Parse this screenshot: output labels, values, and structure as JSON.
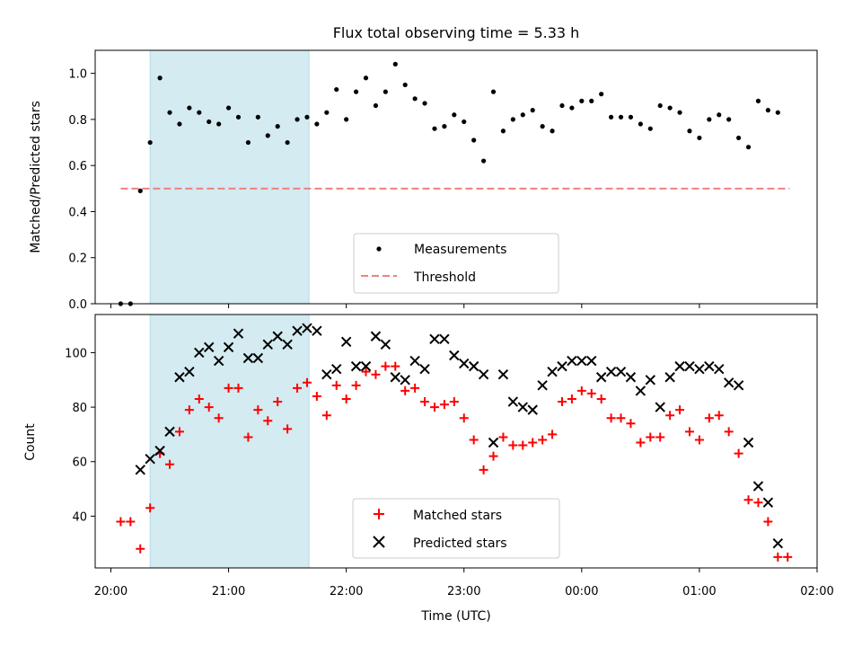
{
  "figure_title": "Flux total observing time = 5.33 h",
  "chart_data": [
    {
      "type": "scatter",
      "title": "Flux total observing time = 5.33 h",
      "xlabel": "",
      "ylabel": "Matched/Predicted stars",
      "ylim": [
        0,
        1.1
      ],
      "yticks": [
        "0.0",
        "0.2",
        "0.4",
        "0.6",
        "0.8",
        "1.0"
      ],
      "yticks_values": [
        0,
        0.2,
        0.4,
        0.6,
        0.8,
        1.0
      ],
      "shaded_window": {
        "start": "20:20",
        "end": "21:41",
        "color": "#d3ebf1"
      },
      "threshold": {
        "label": "Threshold",
        "value": 0.5,
        "x_start": "20:05",
        "x_end": "01:46",
        "color": "#f08080"
      },
      "legend": {
        "placement": "lower-center",
        "entries": [
          "Measurements",
          "Threshold"
        ]
      },
      "series": [
        {
          "name": "Measurements",
          "marker": "dot",
          "color": "#000000",
          "x": [
            "20:05",
            "20:10",
            "20:15",
            "20:20",
            "20:25",
            "20:30",
            "20:35",
            "20:40",
            "20:45",
            "20:50",
            "20:55",
            "21:00",
            "21:05",
            "21:10",
            "21:15",
            "21:20",
            "21:25",
            "21:30",
            "21:35",
            "21:40",
            "21:45",
            "21:50",
            "21:55",
            "22:00",
            "22:05",
            "22:10",
            "22:15",
            "22:20",
            "22:25",
            "22:30",
            "22:35",
            "22:40",
            "22:45",
            "22:50",
            "22:55",
            "23:00",
            "23:05",
            "23:10",
            "23:15",
            "23:20",
            "23:25",
            "23:30",
            "23:35",
            "23:40",
            "23:45",
            "23:50",
            "23:55",
            "00:00",
            "00:05",
            "00:10",
            "00:15",
            "00:20",
            "00:25",
            "00:30",
            "00:35",
            "00:40",
            "00:45",
            "00:50",
            "00:55",
            "01:00",
            "01:05",
            "01:10",
            "01:15",
            "01:20",
            "01:25",
            "01:30",
            "01:35",
            "01:40"
          ],
          "y": [
            0.0,
            0.0,
            0.49,
            0.7,
            0.98,
            0.83,
            0.78,
            0.85,
            0.83,
            0.79,
            0.78,
            0.85,
            0.81,
            0.7,
            0.81,
            0.73,
            0.77,
            0.7,
            0.8,
            0.81,
            0.78,
            0.83,
            0.93,
            0.8,
            0.92,
            0.98,
            0.86,
            0.92,
            1.04,
            0.95,
            0.89,
            0.87,
            0.76,
            0.77,
            0.82,
            0.79,
            0.71,
            0.62,
            0.92,
            0.75,
            0.8,
            0.82,
            0.84,
            0.77,
            0.75,
            0.86,
            0.85,
            0.88,
            0.88,
            0.91,
            0.81,
            0.81,
            0.81,
            0.78,
            0.76,
            0.86,
            0.85,
            0.83,
            0.75,
            0.72,
            0.8,
            0.82,
            0.8,
            0.72,
            0.68,
            0.88,
            0.84,
            0.83
          ]
        }
      ]
    },
    {
      "type": "scatter",
      "xlabel": "Time (UTC)",
      "ylabel": "Count",
      "ylim": [
        21,
        114
      ],
      "yticks": [
        "40",
        "60",
        "80",
        "100"
      ],
      "yticks_values": [
        40,
        60,
        80,
        100
      ],
      "xlim": [
        "19:52",
        "02:00"
      ],
      "xticks": [
        "20:00",
        "21:00",
        "22:00",
        "23:00",
        "00:00",
        "01:00",
        "02:00"
      ],
      "shaded_window": {
        "start": "20:20",
        "end": "21:41",
        "color": "#d3ebf1"
      },
      "legend": {
        "placement": "lower-center",
        "entries": [
          "Matched stars",
          "Predicted stars"
        ]
      },
      "series": [
        {
          "name": "Matched stars",
          "marker": "plus",
          "color": "#ff0000",
          "x": [
            "20:05",
            "20:10",
            "20:15",
            "20:20",
            "20:25",
            "20:30",
            "20:35",
            "20:40",
            "20:45",
            "20:50",
            "20:55",
            "21:00",
            "21:05",
            "21:10",
            "21:15",
            "21:20",
            "21:25",
            "21:30",
            "21:35",
            "21:40",
            "21:45",
            "21:50",
            "21:55",
            "22:00",
            "22:05",
            "22:10",
            "22:15",
            "22:20",
            "22:25",
            "22:30",
            "22:35",
            "22:40",
            "22:45",
            "22:50",
            "22:55",
            "23:00",
            "23:05",
            "23:10",
            "23:15",
            "23:20",
            "23:25",
            "23:30",
            "23:35",
            "23:40",
            "23:45",
            "23:50",
            "23:55",
            "00:00",
            "00:05",
            "00:10",
            "00:15",
            "00:20",
            "00:25",
            "00:30",
            "00:35",
            "00:40",
            "00:45",
            "00:50",
            "00:55",
            "01:00",
            "01:05",
            "01:10",
            "01:15",
            "01:20",
            "01:25",
            "01:30",
            "01:35",
            "01:40",
            "01:45"
          ],
          "y": [
            38,
            38,
            28,
            43,
            63,
            59,
            71,
            79,
            83,
            80,
            76,
            87,
            87,
            69,
            79,
            75,
            82,
            72,
            87,
            89,
            84,
            77,
            88,
            83,
            88,
            93,
            92,
            95,
            95,
            86,
            87,
            82,
            80,
            81,
            82,
            76,
            68,
            57,
            62,
            69,
            66,
            66,
            67,
            68,
            70,
            82,
            83,
            86,
            85,
            83,
            76,
            76,
            74,
            67,
            69,
            69,
            77,
            79,
            71,
            68,
            76,
            77,
            71,
            63,
            46,
            45,
            38,
            25,
            25
          ]
        },
        {
          "name": "Predicted stars",
          "marker": "x",
          "color": "#000000",
          "x": [
            "20:15",
            "20:20",
            "20:25",
            "20:30",
            "20:35",
            "20:40",
            "20:45",
            "20:50",
            "20:55",
            "21:00",
            "21:05",
            "21:10",
            "21:15",
            "21:20",
            "21:25",
            "21:30",
            "21:35",
            "21:40",
            "21:45",
            "21:50",
            "21:55",
            "22:00",
            "22:05",
            "22:10",
            "22:15",
            "22:20",
            "22:25",
            "22:30",
            "22:35",
            "22:40",
            "22:45",
            "22:50",
            "22:55",
            "23:00",
            "23:05",
            "23:10",
            "23:15",
            "23:20",
            "23:25",
            "23:30",
            "23:35",
            "23:40",
            "23:45",
            "23:50",
            "23:55",
            "00:00",
            "00:05",
            "00:10",
            "00:15",
            "00:20",
            "00:25",
            "00:30",
            "00:35",
            "00:40",
            "00:45",
            "00:50",
            "00:55",
            "01:00",
            "01:05",
            "01:10",
            "01:15",
            "01:20",
            "01:25",
            "01:30",
            "01:35",
            "01:40"
          ],
          "y": [
            57,
            61,
            64,
            71,
            91,
            93,
            100,
            102,
            97,
            102,
            107,
            98,
            98,
            103,
            106,
            103,
            108,
            109,
            108,
            92,
            94,
            104,
            95,
            95,
            106,
            103,
            91,
            90,
            97,
            94,
            105,
            105,
            99,
            96,
            95,
            92,
            67,
            92,
            82,
            80,
            79,
            88,
            93,
            95,
            97,
            97,
            97,
            91,
            93,
            93,
            91,
            86,
            90,
            80,
            91,
            95,
            95,
            94,
            95,
            94,
            89,
            88,
            67,
            51,
            45,
            30
          ]
        }
      ]
    }
  ]
}
